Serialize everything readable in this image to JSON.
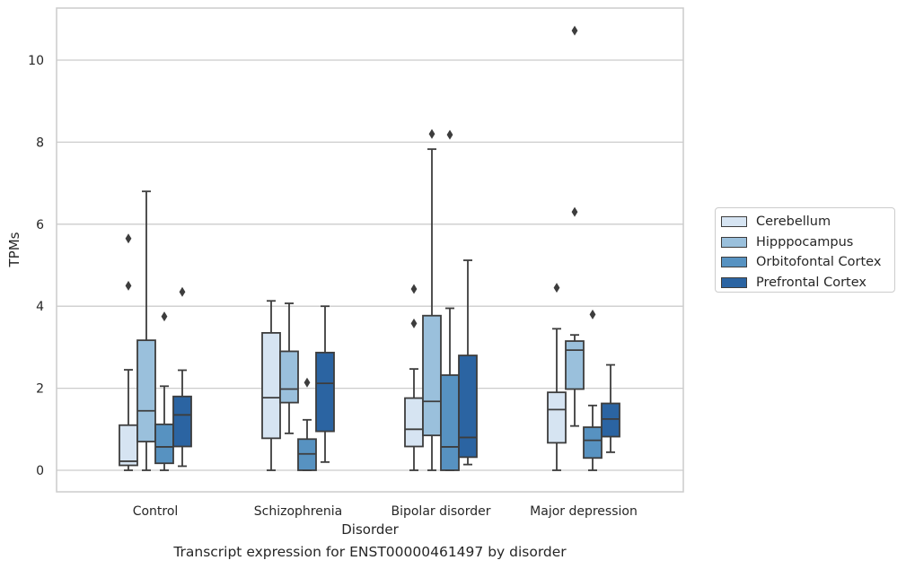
{
  "chart_data": {
    "type": "box",
    "xlabel": "Disorder",
    "ylabel": "TPMs",
    "caption": "Transcript expression for ENST00000461497 by disorder",
    "ylim": [
      -0.5,
      11.3
    ],
    "yticks": [
      0,
      2,
      4,
      6,
      8,
      10
    ],
    "grid": "horizontal",
    "legend_position": "right",
    "categories": [
      "Control",
      "Schizophrenia",
      "Bipolar disorder",
      "Major depression"
    ],
    "series": [
      {
        "name": "Cerebellum",
        "color": "#d6e4f2",
        "boxes": [
          {
            "whislo": 0.0,
            "q1": 0.12,
            "med": 0.22,
            "q3": 1.1,
            "whishi": 2.45,
            "fliers": [
              4.5,
              5.65
            ]
          },
          {
            "whislo": 0.0,
            "q1": 0.78,
            "med": 1.77,
            "q3": 3.35,
            "whishi": 4.13,
            "fliers": []
          },
          {
            "whislo": 0.0,
            "q1": 0.58,
            "med": 1.0,
            "q3": 1.76,
            "whishi": 2.47,
            "fliers": [
              3.58,
              4.42
            ]
          },
          {
            "whislo": 0.0,
            "q1": 0.67,
            "med": 1.48,
            "q3": 1.9,
            "whishi": 3.45,
            "fliers": [
              4.45
            ]
          }
        ]
      },
      {
        "name": "Hipppocampus",
        "color": "#9ac0dc",
        "boxes": [
          {
            "whislo": 0.0,
            "q1": 0.7,
            "med": 1.45,
            "q3": 3.17,
            "whishi": 6.8,
            "fliers": []
          },
          {
            "whislo": 0.9,
            "q1": 1.65,
            "med": 1.98,
            "q3": 2.9,
            "whishi": 4.07,
            "fliers": []
          },
          {
            "whislo": 0.0,
            "q1": 0.85,
            "med": 1.68,
            "q3": 3.77,
            "whishi": 7.83,
            "fliers": [
              8.2
            ]
          },
          {
            "whislo": 1.08,
            "q1": 1.98,
            "med": 2.93,
            "q3": 3.15,
            "whishi": 3.3,
            "fliers": [
              6.3,
              10.72
            ]
          }
        ]
      },
      {
        "name": "Orbitofontal Cortex",
        "color": "#5792c1",
        "boxes": [
          {
            "whislo": 0.0,
            "q1": 0.17,
            "med": 0.57,
            "q3": 1.12,
            "whishi": 2.05,
            "fliers": [
              3.75
            ]
          },
          {
            "whislo": 0.0,
            "q1": 0.0,
            "med": 0.4,
            "q3": 0.76,
            "whishi": 1.23,
            "fliers": [
              2.14
            ]
          },
          {
            "whislo": 0.0,
            "q1": 0.0,
            "med": 0.57,
            "q3": 2.32,
            "whishi": 3.95,
            "fliers": [
              8.18
            ]
          },
          {
            "whislo": 0.0,
            "q1": 0.3,
            "med": 0.73,
            "q3": 1.05,
            "whishi": 1.58,
            "fliers": [
              3.8
            ]
          }
        ]
      },
      {
        "name": "Prefrontal Cortex",
        "color": "#2b64a2",
        "boxes": [
          {
            "whislo": 0.1,
            "q1": 0.58,
            "med": 1.35,
            "q3": 1.8,
            "whishi": 2.44,
            "fliers": [
              4.35
            ]
          },
          {
            "whislo": 0.2,
            "q1": 0.95,
            "med": 2.12,
            "q3": 2.87,
            "whishi": 4.0,
            "fliers": []
          },
          {
            "whislo": 0.14,
            "q1": 0.32,
            "med": 0.8,
            "q3": 2.8,
            "whishi": 5.12,
            "fliers": []
          },
          {
            "whislo": 0.44,
            "q1": 0.82,
            "med": 1.25,
            "q3": 1.63,
            "whishi": 2.57,
            "fliers": []
          }
        ]
      }
    ]
  }
}
